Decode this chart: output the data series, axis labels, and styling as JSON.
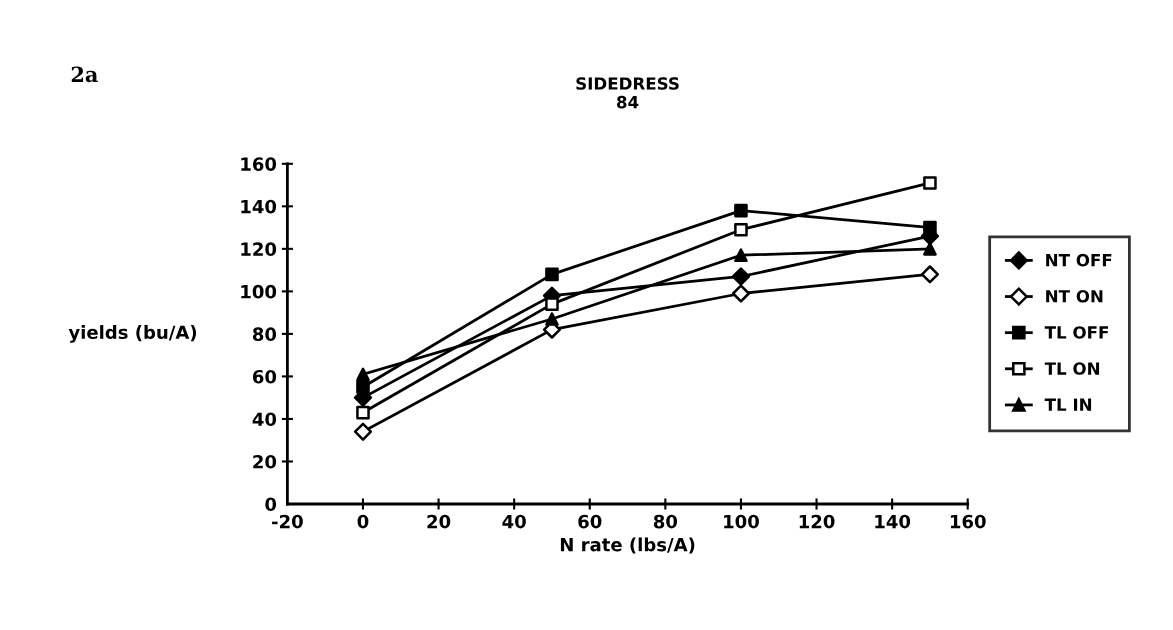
{
  "chart_data": {
    "type": "line",
    "title": "SIDEDRESS\n84",
    "xlabel": "N rate (lbs/A)",
    "ylabel": "yields (bu/A)",
    "annotations": [
      "2a"
    ],
    "x": [
      0,
      50,
      100,
      150
    ],
    "xlim": [
      -20,
      160
    ],
    "xticks": [
      -20,
      0,
      20,
      40,
      60,
      80,
      100,
      120,
      140,
      160
    ],
    "ylim": [
      0,
      160
    ],
    "yticks": [
      0,
      20,
      40,
      60,
      80,
      100,
      120,
      140,
      160
    ],
    "grid": false,
    "legend": "right",
    "series": [
      {
        "name": "NT OFF",
        "color": "#000000",
        "marker": "diamond",
        "values": [
          50,
          98,
          107,
          126
        ]
      },
      {
        "name": "NT ON",
        "color": "#000000",
        "marker": "diamond",
        "colors": [
          "#ffffff",
          "#ffffff",
          "#ffffff",
          "#ffffff"
        ],
        "values": [
          34,
          82,
          99,
          108
        ]
      },
      {
        "name": "TL OFF",
        "color": "#000000",
        "marker": "square",
        "values": [
          55,
          108,
          138,
          130
        ]
      },
      {
        "name": "TL ON",
        "color": "#000000",
        "marker": "square",
        "colors": [
          "#ffffff",
          "#ffffff",
          "#ffffff",
          "#ffffff"
        ],
        "values": [
          43,
          94,
          129,
          151
        ]
      },
      {
        "name": "TL IN",
        "color": "#000000",
        "marker": "triangle",
        "values": [
          61,
          87,
          117,
          120
        ]
      }
    ]
  }
}
